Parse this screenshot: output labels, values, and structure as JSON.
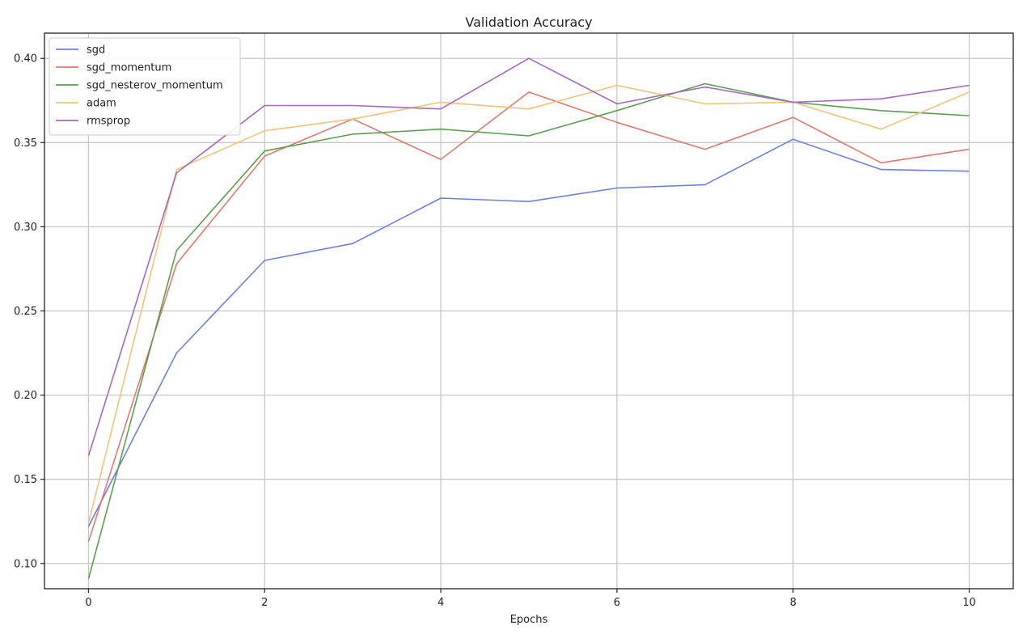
{
  "chart_data": {
    "type": "line",
    "title": "Validation Accuracy",
    "xlabel": "Epochs",
    "ylabel": "",
    "xlim": [
      -0.5,
      10.5
    ],
    "ylim": [
      0.085,
      0.415
    ],
    "xticks": [
      0,
      2,
      4,
      6,
      8,
      10
    ],
    "yticks": [
      0.1,
      0.15,
      0.2,
      0.25,
      0.3,
      0.35,
      0.4
    ],
    "grid": true,
    "legend_position": "top-left",
    "x": [
      0,
      1,
      2,
      3,
      4,
      5,
      6,
      7,
      8,
      9,
      10
    ],
    "series": [
      {
        "name": "sgd",
        "color": "#6b7ee8",
        "values": [
          0.122,
          0.225,
          0.28,
          0.29,
          0.317,
          0.315,
          0.323,
          0.325,
          0.352,
          0.334,
          0.333
        ]
      },
      {
        "name": "sgd_momentum",
        "color": "#e07a6e",
        "values": [
          0.113,
          0.278,
          0.342,
          0.364,
          0.34,
          0.38,
          0.362,
          0.346,
          0.365,
          0.338,
          0.346
        ]
      },
      {
        "name": "sgd_nesterov_momentum",
        "color": "#5c9e4f",
        "values": [
          0.091,
          0.286,
          0.345,
          0.355,
          0.358,
          0.354,
          0.369,
          0.385,
          0.374,
          0.369,
          0.366
        ]
      },
      {
        "name": "adam",
        "color": "#f2c37c",
        "values": [
          0.124,
          0.334,
          0.357,
          0.364,
          0.374,
          0.37,
          0.384,
          0.373,
          0.374,
          0.358,
          0.38
        ]
      },
      {
        "name": "rmsprop",
        "color": "#a569bd",
        "values": [
          0.164,
          0.332,
          0.372,
          0.372,
          0.37,
          0.4,
          0.373,
          0.383,
          0.374,
          0.376,
          0.384
        ]
      }
    ]
  }
}
